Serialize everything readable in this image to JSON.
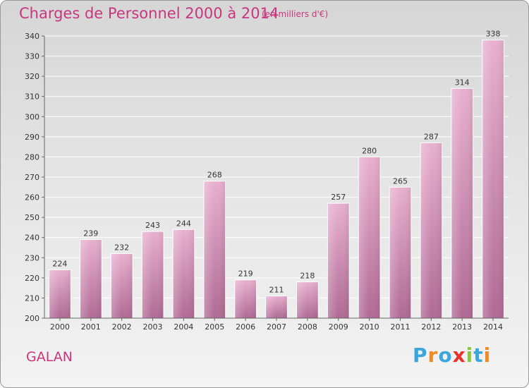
{
  "header": {
    "title": "Charges de Personnel 2000 à 2014",
    "subtitle": "(en milliers d'€)"
  },
  "footer": {
    "commune": "GALAN",
    "logo_text": "Proxiti",
    "logo_letters": [
      {
        "ch": "P",
        "color": "#3aa6dd"
      },
      {
        "ch": "r",
        "color": "#f08a24"
      },
      {
        "ch": "o",
        "color": "#3aa6dd"
      },
      {
        "ch": "x",
        "color": "#e8342e"
      },
      {
        "ch": "i",
        "color": "#8cc63f"
      },
      {
        "ch": "t",
        "color": "#3aa6dd"
      },
      {
        "ch": "i",
        "color": "#f08a24"
      }
    ]
  },
  "colors": {
    "accent": "#c7377e",
    "bar_top": "#e8b0cf",
    "bar_bottom": "#b06a94",
    "grid": "#ffffff",
    "axis_text": "#333333"
  },
  "chart_data": {
    "type": "bar",
    "title": "Charges de Personnel 2000 à 2014",
    "subtitle": "(en milliers d'€)",
    "categories": [
      "2000",
      "2001",
      "2002",
      "2003",
      "2004",
      "2005",
      "2006",
      "2007",
      "2008",
      "2009",
      "2010",
      "2011",
      "2012",
      "2013",
      "2014"
    ],
    "values": [
      224,
      239,
      232,
      243,
      244,
      268,
      219,
      211,
      218,
      257,
      280,
      265,
      287,
      314,
      338
    ],
    "xlabel": "",
    "ylabel": "",
    "ylim": [
      200,
      340
    ],
    "yticks": [
      200,
      210,
      220,
      230,
      240,
      250,
      260,
      270,
      280,
      290,
      300,
      310,
      320,
      330,
      340
    ],
    "grid": true,
    "data_labels": true
  }
}
